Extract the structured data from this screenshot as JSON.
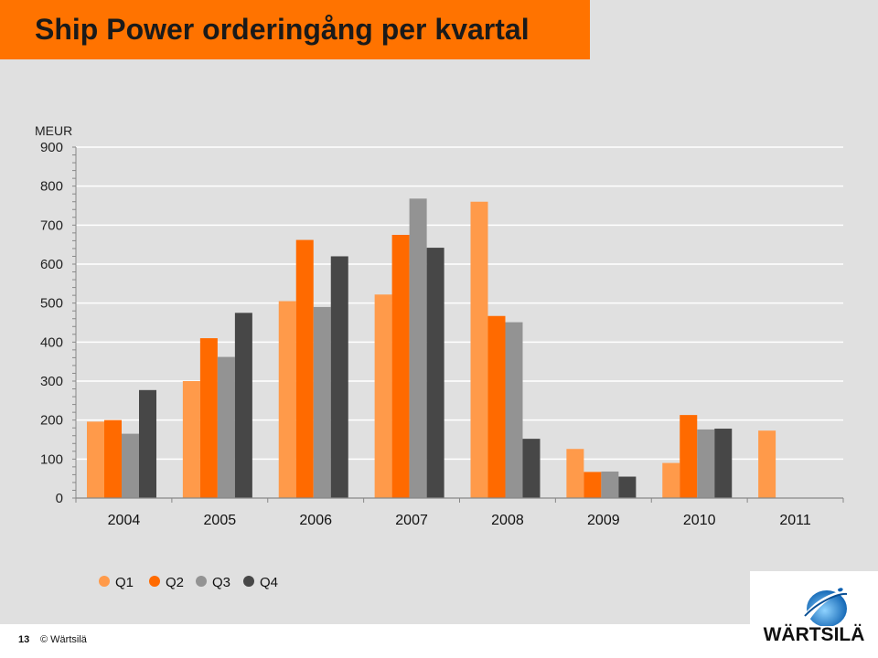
{
  "header": {
    "title": "Ship Power orderingång per kvartal"
  },
  "footer": {
    "page_number": "13",
    "copyright": "© Wärtsilä"
  },
  "logo": {
    "wordmark": "WÄRTSILÄ"
  },
  "colors": {
    "accent": "#ff7300",
    "Q1": "#ff9a4a",
    "Q2": "#ff6a00",
    "Q3": "#939393",
    "Q4": "#474747"
  },
  "chart_data": {
    "type": "bar",
    "unit_label": "MEUR",
    "categories": [
      "2004",
      "2005",
      "2006",
      "2007",
      "2008",
      "2009",
      "2010",
      "2011"
    ],
    "series": [
      {
        "name": "Q1",
        "values": [
          196,
          300,
          505,
          522,
          760,
          126,
          90,
          173
        ]
      },
      {
        "name": "Q2",
        "values": [
          200,
          410,
          662,
          675,
          467,
          67,
          213,
          null
        ]
      },
      {
        "name": "Q3",
        "values": [
          165,
          362,
          490,
          768,
          451,
          68,
          176,
          null
        ]
      },
      {
        "name": "Q4",
        "values": [
          277,
          475,
          620,
          642,
          152,
          55,
          178,
          null
        ]
      }
    ],
    "ylim": [
      0,
      900
    ],
    "yticks": [
      0,
      100,
      200,
      300,
      400,
      500,
      600,
      700,
      800,
      900
    ],
    "grid": true,
    "legend_position": "bottom-left"
  }
}
